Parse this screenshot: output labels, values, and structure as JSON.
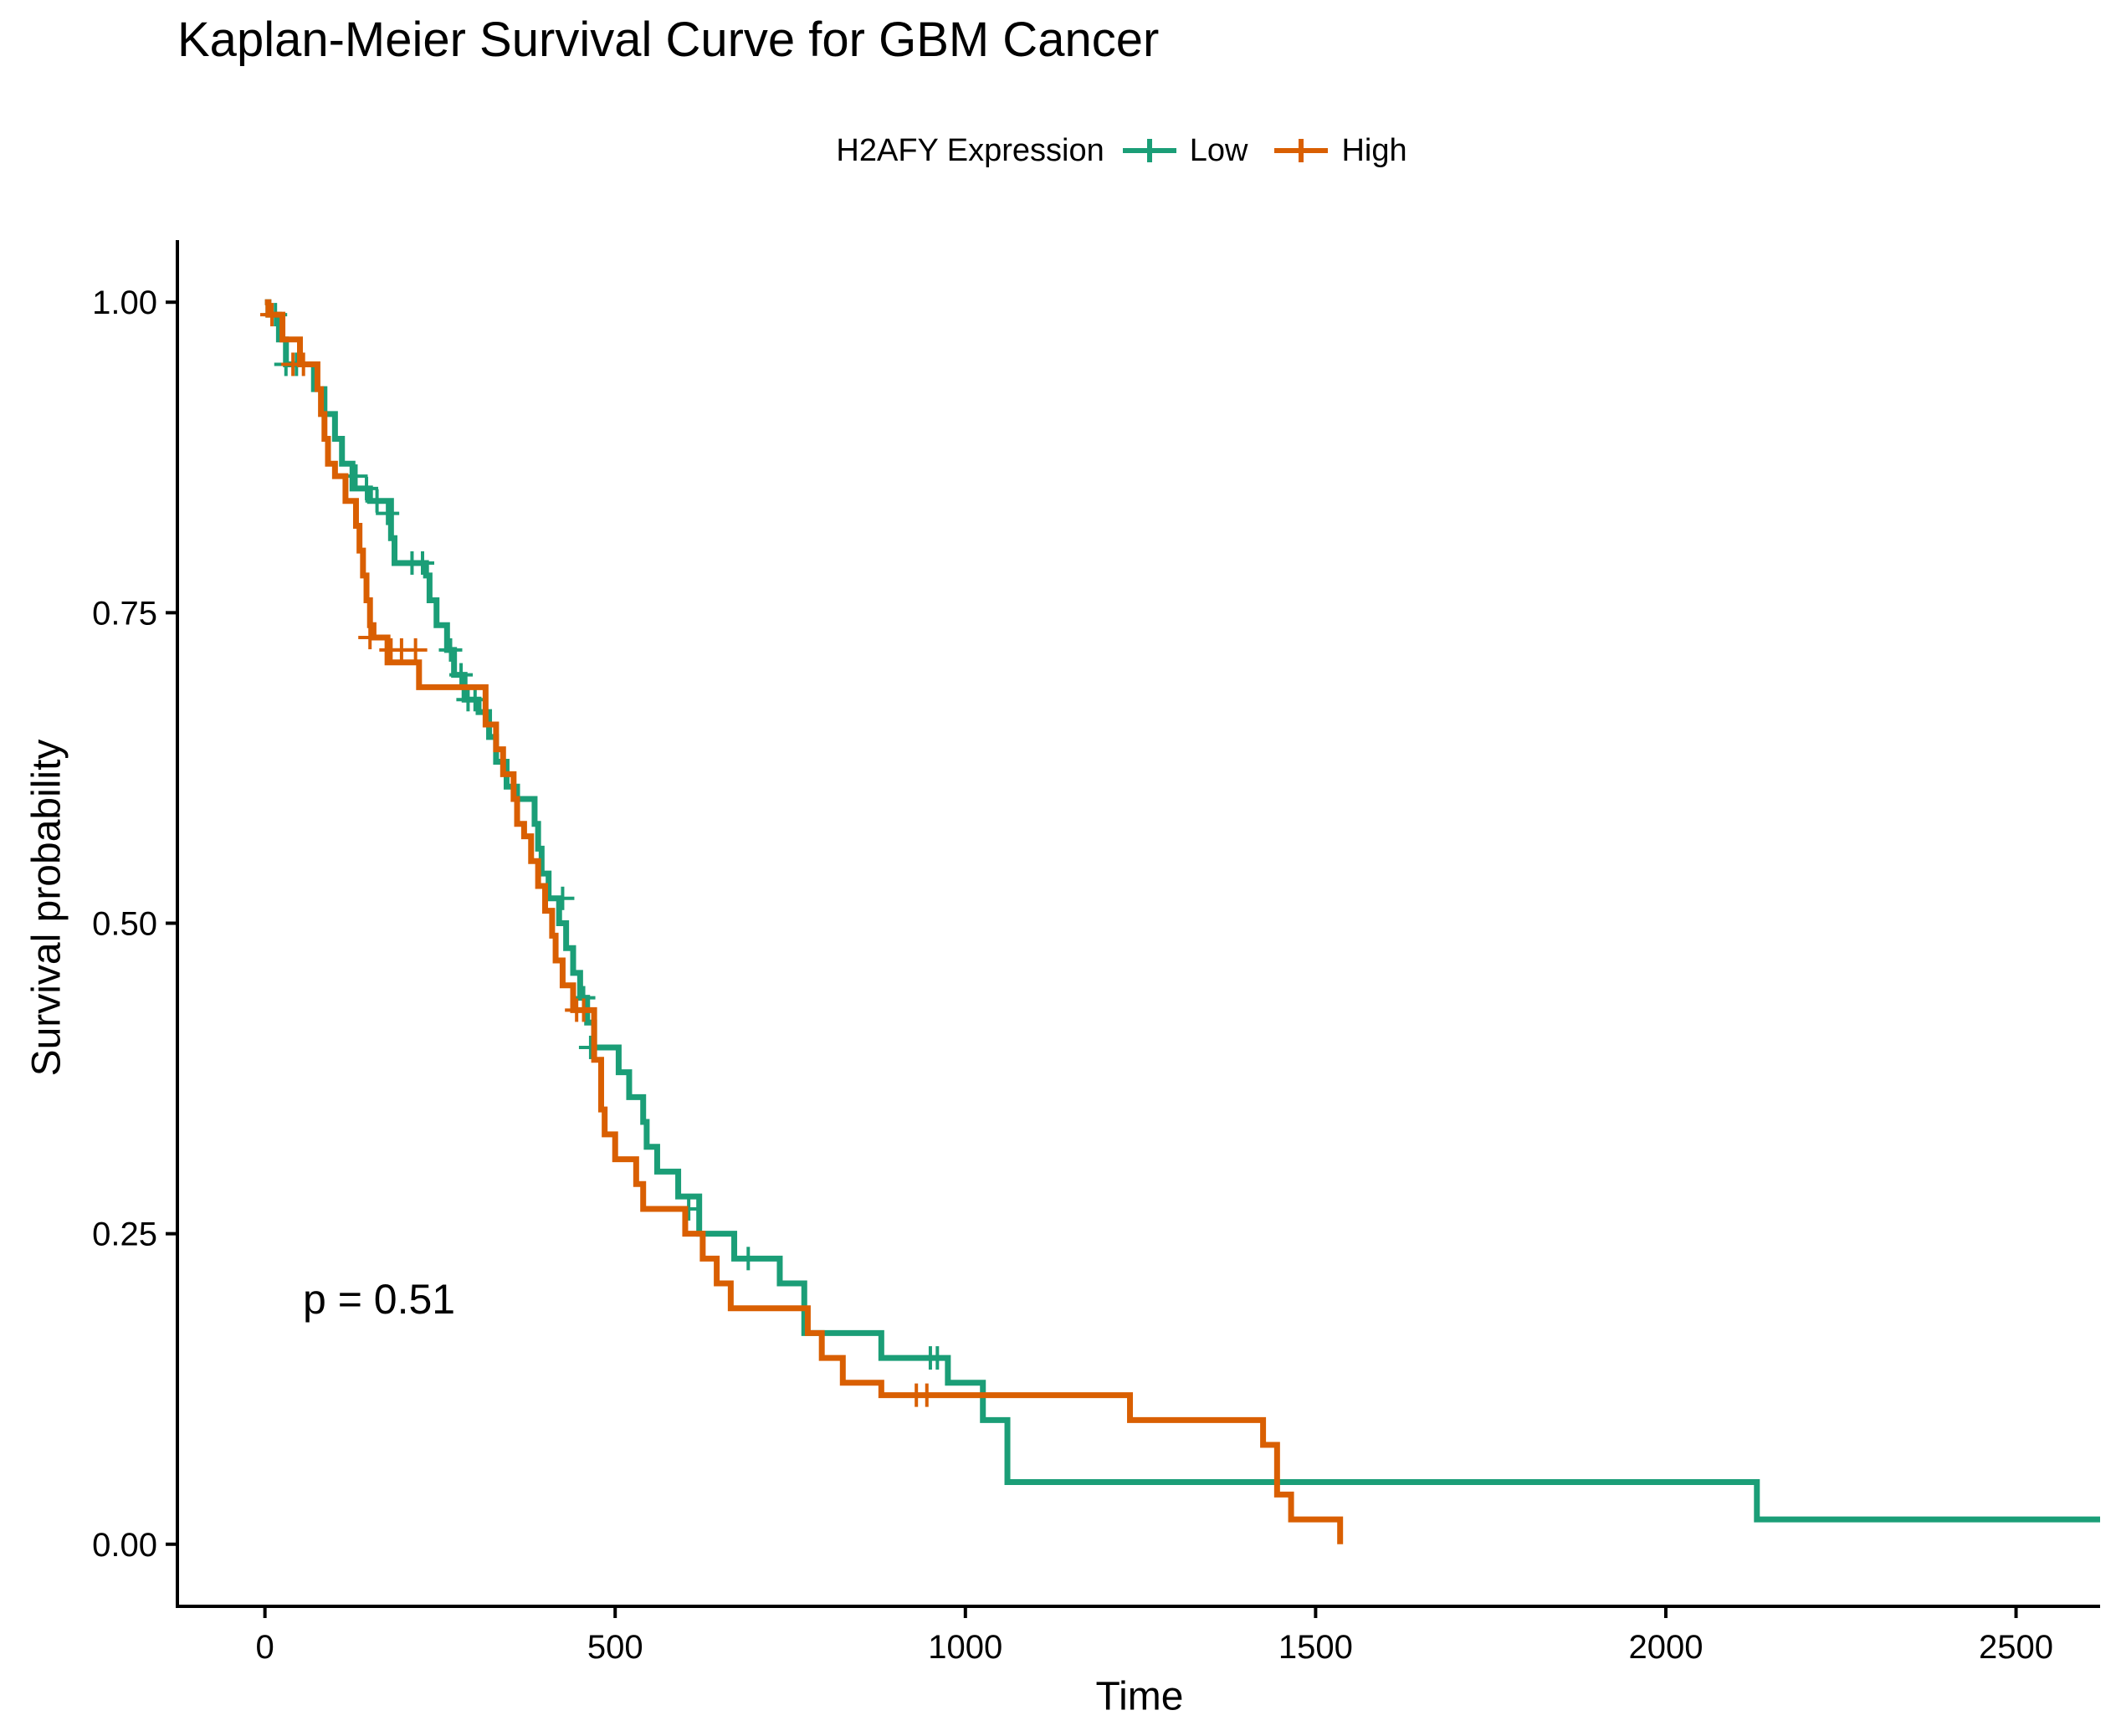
{
  "title": "Kaplan-Meier Survival Curve for GBM Cancer",
  "legend": {
    "title": "H2AFY Expression",
    "items": [
      {
        "label": "Low",
        "color": "#1B9E77"
      },
      {
        "label": "High",
        "color": "#D95F02"
      }
    ]
  },
  "annotation": "p = 0.51",
  "chart_data": {
    "type": "line",
    "step": true,
    "title": "Kaplan-Meier Survival Curve for GBM Cancer",
    "xlabel": "Time",
    "ylabel": "Survival probability",
    "xlim": [
      -125,
      2620
    ],
    "ylim": [
      -0.05,
      1.05
    ],
    "x_ticks": [
      0,
      500,
      1000,
      1500,
      2000,
      2500
    ],
    "x_tick_labels": [
      "0",
      "500",
      "1000",
      "1500",
      "2000",
      "2500"
    ],
    "y_ticks": [
      0,
      0.25,
      0.5,
      0.75,
      1.0
    ],
    "y_tick_labels": [
      "0.00",
      "0.25",
      "0.50",
      "0.75",
      "1.00"
    ],
    "grid": false,
    "legend_position": "top",
    "series": [
      {
        "name": "Low",
        "color": "#1B9E77",
        "steps": [
          [
            0,
            1.0
          ],
          [
            5,
            0.99
          ],
          [
            20,
            0.97
          ],
          [
            30,
            0.95
          ],
          [
            70,
            0.93
          ],
          [
            85,
            0.91
          ],
          [
            100,
            0.89
          ],
          [
            110,
            0.87
          ],
          [
            125,
            0.85
          ],
          [
            150,
            0.84
          ],
          [
            180,
            0.81
          ],
          [
            185,
            0.79
          ],
          [
            230,
            0.78
          ],
          [
            235,
            0.76
          ],
          [
            245,
            0.74
          ],
          [
            260,
            0.72
          ],
          [
            270,
            0.7
          ],
          [
            285,
            0.68
          ],
          [
            305,
            0.67
          ],
          [
            320,
            0.65
          ],
          [
            330,
            0.63
          ],
          [
            345,
            0.61
          ],
          [
            360,
            0.6
          ],
          [
            385,
            0.58
          ],
          [
            390,
            0.56
          ],
          [
            395,
            0.54
          ],
          [
            405,
            0.52
          ],
          [
            420,
            0.5
          ],
          [
            430,
            0.48
          ],
          [
            440,
            0.46
          ],
          [
            450,
            0.44
          ],
          [
            460,
            0.42
          ],
          [
            470,
            0.4
          ],
          [
            505,
            0.38
          ],
          [
            520,
            0.36
          ],
          [
            540,
            0.34
          ],
          [
            545,
            0.32
          ],
          [
            560,
            0.3
          ],
          [
            590,
            0.28
          ],
          [
            620,
            0.25
          ],
          [
            670,
            0.23
          ],
          [
            735,
            0.21
          ],
          [
            770,
            0.17
          ],
          [
            880,
            0.15
          ],
          [
            975,
            0.13
          ],
          [
            1025,
            0.1
          ],
          [
            1060,
            0.05
          ],
          [
            2130,
            0.02
          ],
          [
            2620,
            0.02
          ]
        ],
        "censor": [
          [
            15,
            0.99
          ],
          [
            30,
            0.95
          ],
          [
            45,
            0.95
          ],
          [
            130,
            0.86
          ],
          [
            145,
            0.85
          ],
          [
            160,
            0.84
          ],
          [
            175,
            0.83
          ],
          [
            210,
            0.79
          ],
          [
            225,
            0.79
          ],
          [
            265,
            0.72
          ],
          [
            280,
            0.7
          ],
          [
            290,
            0.68
          ],
          [
            300,
            0.68
          ],
          [
            425,
            0.52
          ],
          [
            455,
            0.44
          ],
          [
            465,
            0.4
          ],
          [
            605,
            0.27
          ],
          [
            690,
            0.23
          ],
          [
            950,
            0.15
          ],
          [
            960,
            0.15
          ]
        ]
      },
      {
        "name": "High",
        "color": "#D95F02",
        "steps": [
          [
            0,
            1.0
          ],
          [
            5,
            0.99
          ],
          [
            25,
            0.97
          ],
          [
            50,
            0.95
          ],
          [
            75,
            0.93
          ],
          [
            80,
            0.91
          ],
          [
            85,
            0.89
          ],
          [
            90,
            0.87
          ],
          [
            100,
            0.86
          ],
          [
            115,
            0.84
          ],
          [
            130,
            0.82
          ],
          [
            135,
            0.8
          ],
          [
            140,
            0.78
          ],
          [
            145,
            0.76
          ],
          [
            150,
            0.74
          ],
          [
            155,
            0.73
          ],
          [
            175,
            0.71
          ],
          [
            220,
            0.69
          ],
          [
            315,
            0.66
          ],
          [
            330,
            0.64
          ],
          [
            340,
            0.62
          ],
          [
            355,
            0.6
          ],
          [
            360,
            0.58
          ],
          [
            370,
            0.57
          ],
          [
            380,
            0.55
          ],
          [
            390,
            0.53
          ],
          [
            400,
            0.51
          ],
          [
            410,
            0.49
          ],
          [
            415,
            0.47
          ],
          [
            425,
            0.45
          ],
          [
            440,
            0.43
          ],
          [
            470,
            0.39
          ],
          [
            480,
            0.35
          ],
          [
            485,
            0.33
          ],
          [
            500,
            0.31
          ],
          [
            530,
            0.29
          ],
          [
            540,
            0.27
          ],
          [
            600,
            0.25
          ],
          [
            625,
            0.23
          ],
          [
            645,
            0.21
          ],
          [
            665,
            0.19
          ],
          [
            775,
            0.17
          ],
          [
            795,
            0.15
          ],
          [
            825,
            0.13
          ],
          [
            880,
            0.12
          ],
          [
            1235,
            0.1
          ],
          [
            1425,
            0.08
          ],
          [
            1445,
            0.04
          ],
          [
            1465,
            0.02
          ],
          [
            1535,
            0.0
          ]
        ],
        "censor": [
          [
            10,
            0.99
          ],
          [
            40,
            0.95
          ],
          [
            55,
            0.95
          ],
          [
            150,
            0.73
          ],
          [
            180,
            0.72
          ],
          [
            195,
            0.72
          ],
          [
            215,
            0.72
          ],
          [
            445,
            0.43
          ],
          [
            455,
            0.43
          ],
          [
            930,
            0.12
          ],
          [
            945,
            0.12
          ]
        ]
      }
    ]
  }
}
